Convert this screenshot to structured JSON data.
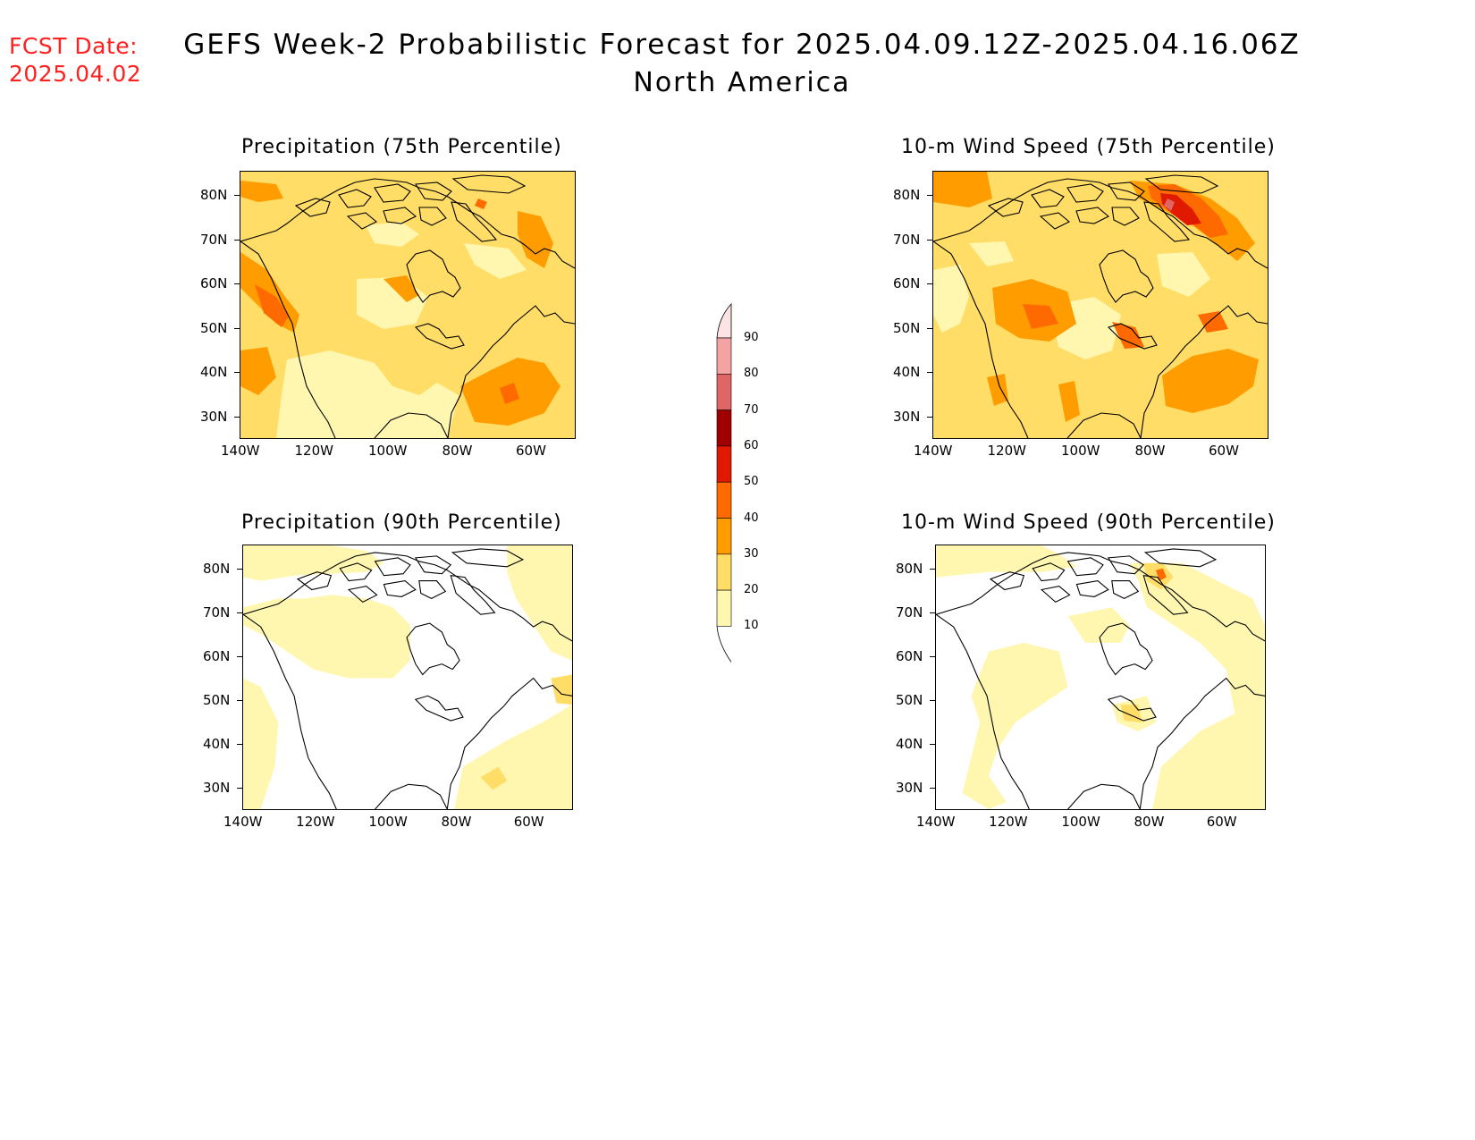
{
  "header": {
    "fcst_label": "FCST Date:",
    "fcst_date": "2025.04.02",
    "title": "GEFS Week-2 Probabilistic Forecast for 2025.04.09.12Z-2025.04.16.06Z",
    "subtitle": "North America"
  },
  "axes": {
    "lat_ticks": [
      "80N",
      "70N",
      "60N",
      "50N",
      "40N",
      "30N"
    ],
    "lon_ticks": [
      "140W",
      "120W",
      "100W",
      "80W",
      "60W"
    ]
  },
  "panels": [
    {
      "title": "Precipitation (75th Percentile)"
    },
    {
      "title": "10-m Wind Speed (75th Percentile)"
    },
    {
      "title": "Precipitation (90th Percentile)"
    },
    {
      "title": "10-m Wind Speed (90th Percentile)"
    }
  ],
  "legend": {
    "labels": [
      "90",
      "80",
      "70",
      "60",
      "50",
      "40",
      "30",
      "20",
      "10"
    ],
    "colors": [
      "#fde4e4",
      "#f4a3a3",
      "#e06666",
      "#a00000",
      "#e01a00",
      "#ff6a00",
      "#ff9c00",
      "#ffdd66",
      "#fff7b0"
    ]
  },
  "colors": {
    "c10": "#fff7b0",
    "c20": "#ffdd66",
    "c30": "#ff9c00",
    "c40": "#ff6a00",
    "c50": "#e01a00",
    "c60": "#a00000",
    "c70": "#e06666",
    "fcst": "#ff2020"
  }
}
